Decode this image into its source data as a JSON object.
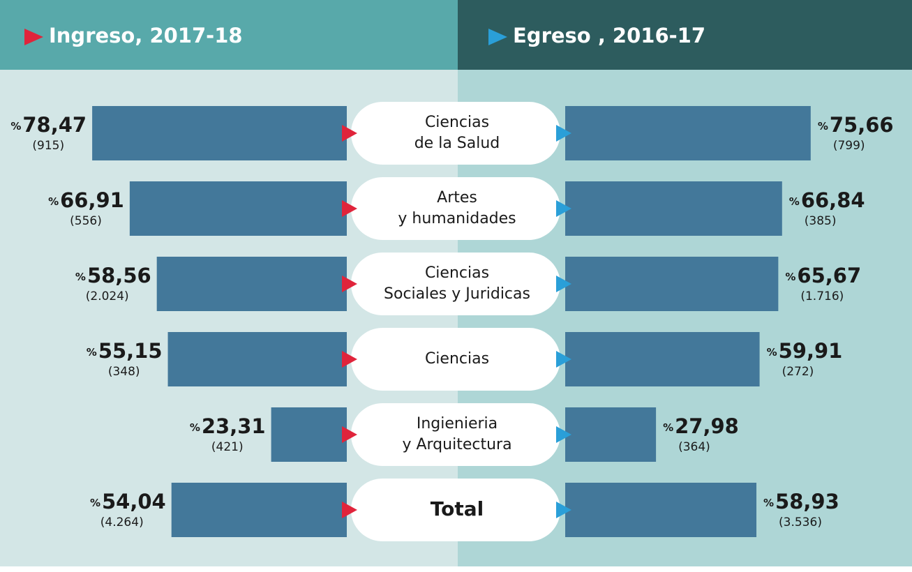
{
  "chart_data": {
    "type": "butterfly",
    "series": [
      {
        "name": "Ingreso, 2017-18",
        "color": "#43789a",
        "marker_color": "#e0243b",
        "values": [
          78.47,
          66.91,
          58.56,
          55.15,
          23.31,
          54.04
        ],
        "value_labels": [
          "78,47",
          "66,91",
          "58,56",
          "55,15",
          "23,31",
          "54,04"
        ],
        "count_labels": [
          "(915)",
          "(556)",
          "(2.024)",
          "(348)",
          "(421)",
          "(4.264)"
        ]
      },
      {
        "name": "Egreso , 2016-17",
        "color": "#43789a",
        "marker_color": "#2a9fd8",
        "values": [
          75.66,
          66.84,
          65.67,
          59.91,
          27.98,
          58.93
        ],
        "value_labels": [
          "75,66",
          "66,84",
          "65,67",
          "59,91",
          "27,98",
          "58,93"
        ],
        "count_labels": [
          "(799)",
          "(385)",
          "(1.716)",
          "(272)",
          "(364)",
          "(3.536)"
        ]
      }
    ],
    "categories": [
      [
        "Ciencias",
        "de la Salud"
      ],
      [
        "Artes",
        "y humanidades"
      ],
      [
        "Ciencias",
        "Sociales y Juridicas"
      ],
      [
        "Ciencias"
      ],
      [
        "Ingienieria",
        "y Arquitectura"
      ],
      [
        "Total"
      ]
    ],
    "unit_label": "%"
  }
}
